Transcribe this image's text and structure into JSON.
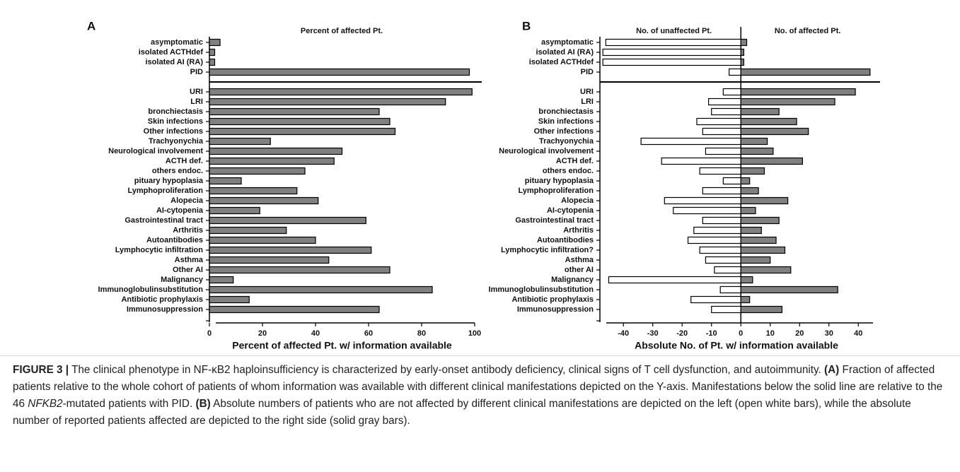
{
  "chart_data": [
    {
      "type": "bar",
      "panel": "A",
      "title": "Percent of affected Pt.",
      "xlabel": "Percent of affected Pt. w/ information available",
      "categories": [
        "asymptomatic",
        "isolated ACTHdef",
        "isolated AI (RA)",
        "PID",
        "URI",
        "LRI",
        "bronchiectasis",
        "Skin infections",
        "Other infections",
        "Trachyonychia",
        "Neurological involvement",
        "ACTH def.",
        "others endoc.",
        "pituary hypoplasia",
        "Lymphoproliferation",
        "Alopecia",
        "AI-cytopenia",
        "Gastrointestinal tract",
        "Arthritis",
        "Autoantibodies",
        "Lymphocytic infiltration",
        "Asthma",
        "Other AI",
        "Malignancy",
        "Immunoglobulinsubstitution",
        "Antibiotic prophylaxis",
        "Immunosuppression"
      ],
      "values": [
        4,
        2,
        2,
        98,
        99,
        89,
        64,
        68,
        70,
        23,
        50,
        47,
        36,
        12,
        33,
        41,
        19,
        59,
        29,
        40,
        61,
        45,
        68,
        9,
        84,
        15,
        64
      ],
      "color": "#808080",
      "xlim": [
        0,
        100
      ],
      "xticks": [
        0,
        20,
        40,
        60,
        80,
        100
      ]
    },
    {
      "type": "diverging-bar",
      "panel": "B",
      "xlabel": "Absolute No. of Pt. w/ information available",
      "categories": [
        "asymptomatic",
        "isolated AI (RA)",
        "isolated ACTHdef",
        "PID",
        "URI",
        "LRI",
        "bronchiectasis",
        "Skin infections",
        "Other infections",
        "Trachyonychia",
        "Neurological involvement",
        "ACTH def.",
        "others endoc.",
        "pituary hypoplasia",
        "Lymphoproliferation",
        "Alopecia",
        "AI-cytopenia",
        "Gastrointestinal tract",
        "Arthritis",
        "Autoantibodies",
        "Lymphocytic infiltration?",
        "Asthma",
        "other AI",
        "Malignancy",
        "Immunoglobulinsubstitution",
        "Antibiotic prophylaxis",
        "Immunosuppression"
      ],
      "series": [
        {
          "name": "No. of unaffected Pt.",
          "color": "#ffffff",
          "values": [
            -46,
            -47,
            -47,
            -4,
            -6,
            -11,
            -10,
            -15,
            -13,
            -34,
            -12,
            -27,
            -14,
            -6,
            -13,
            -26,
            -23,
            -13,
            -16,
            -18,
            -14,
            -12,
            -9,
            -45,
            -7,
            -17,
            -10
          ]
        },
        {
          "name": "No. of affected Pt.",
          "color": "#808080",
          "values": [
            2,
            1,
            1,
            44,
            39,
            32,
            13,
            19,
            23,
            9,
            11,
            21,
            8,
            3,
            6,
            16,
            5,
            13,
            7,
            12,
            15,
            10,
            17,
            4,
            33,
            3,
            14
          ]
        }
      ],
      "xlim": [
        -48,
        45
      ],
      "xticks": [
        -40,
        -30,
        -20,
        -10,
        0,
        10,
        20,
        30,
        40
      ]
    }
  ],
  "caption": {
    "label": "FIGURE 3 |",
    "text1": "The clinical phenotype in NF-κB2 haploinsufficiency is characterized by early-onset antibody deficiency, clinical signs of T cell dysfunction, and autoimmunity.",
    "a": "(A)",
    "text2": "Fraction of affected patients relative to the whole cohort of patients of whom information was available with different clinical manifestations depicted on the Y-axis. Manifestations below the solid line are relative to the 46",
    "gene": "NFKB2",
    "text3": "-mutated patients with PID.",
    "b": "(B)",
    "text4": "Absolute numbers of patients who are not affected by different clinical manifestations are depicted on the left (open white bars), while the absolute number of reported patients affected are depicted to the right side (solid gray bars)."
  }
}
